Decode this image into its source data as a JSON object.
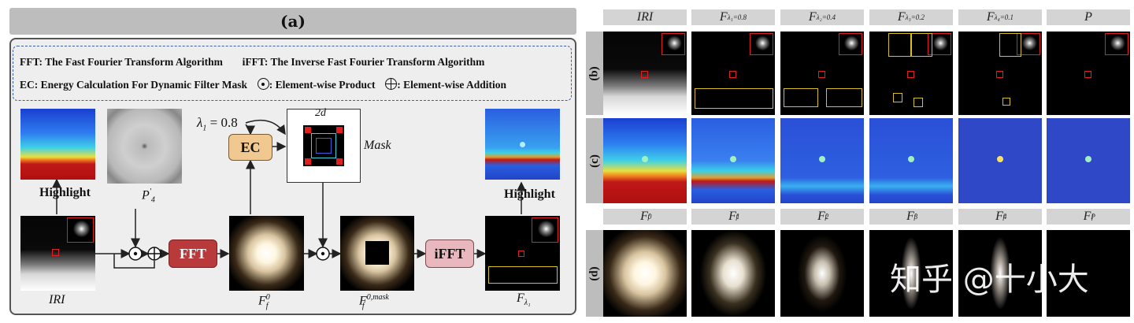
{
  "panel_a": {
    "title": "(a)",
    "legend": {
      "fft": "FFT: The Fast Fourier Transform Algorithm",
      "ifft": "iFFT: The Inverse Fast Fourier Transform Algorithm",
      "ec": "EC: Energy Calculation For Dynamic Filter Mask",
      "product": ": Element-wise Product",
      "addition": ": Element-wise  Addition"
    },
    "nodes": {
      "fft": "FFT",
      "ifft": "iFFT",
      "ec": "EC",
      "lambda": "λ",
      "lambda_sub": "1",
      "lambda_val": " = 0.8",
      "two_d": "2d",
      "mask": "Mask",
      "highlight_left": "Highlight",
      "highlight_right": "Highlight",
      "iri": "IRI",
      "p4": "P",
      "p4_sub": "4",
      "p4_sup": "'",
      "ff0": "F",
      "ff0_sub": "f",
      "ff0_sup": "0",
      "ffmask": "F",
      "ffmask_sub": "f",
      "ffmask_sup": "0,mask",
      "flam": "F",
      "flam_sub": "λ₁"
    }
  },
  "panel_right": {
    "headers": [
      {
        "main": "IRI",
        "sub": "",
        "sup": ""
      },
      {
        "main": "F",
        "sub": "λ₁=0.8",
        "sup": ""
      },
      {
        "main": "F",
        "sub": "λ₂=0.4",
        "sup": ""
      },
      {
        "main": "F",
        "sub": "λ₃=0.2",
        "sup": ""
      },
      {
        "main": "F",
        "sub": "λ₄=0.1",
        "sup": ""
      },
      {
        "main": "P",
        "sub": "",
        "sup": ""
      }
    ],
    "headers_d": [
      {
        "main": "F",
        "sub": "f",
        "sup": "0"
      },
      {
        "main": "F",
        "sub": "f",
        "sup": "1"
      },
      {
        "main": "F",
        "sub": "f",
        "sup": "2"
      },
      {
        "main": "F",
        "sub": "f",
        "sup": "3"
      },
      {
        "main": "F",
        "sub": "f",
        "sup": "4"
      },
      {
        "main": "F",
        "sub": "f",
        "sup": "P"
      }
    ],
    "row_labels": [
      "(b)",
      "(c)",
      "(d)"
    ]
  },
  "watermark": "知乎 @十小大",
  "colors": {
    "fft_box": "#b83a3a",
    "ifft_box": "#e8b8be",
    "ec_box": "#f0c890",
    "legend_border": "#3a5fa8"
  }
}
